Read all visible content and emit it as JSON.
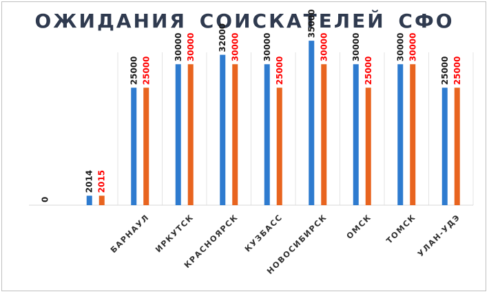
{
  "chart_data": {
    "type": "bar",
    "title": "ОЖИДАНИЯ  СОИСКАТЕЛЕЙ   СФО",
    "categories": [
      "",
      "",
      "БАРНАУЛ",
      "ИРКУТСК",
      "КРАСНОЯРСК",
      "КУЗБАСС",
      "НОВОСИБИРСК",
      "ОМСК",
      "ТОМСК",
      "УЛАН-УДЭ"
    ],
    "series": [
      {
        "color": "#2e7bcf",
        "values": [
          0,
          2014,
          25000,
          30000,
          32000,
          30000,
          35000,
          30000,
          30000,
          25000
        ]
      },
      {
        "color": "#e8641f",
        "values": [
          null,
          2015,
          25000,
          30000,
          30000,
          25000,
          30000,
          25000,
          30000,
          25000
        ]
      }
    ],
    "data_labels": [
      [
        "0",
        "2014",
        "25000",
        "30000",
        "32000",
        "30000",
        "35000",
        "30000",
        "30000",
        "25000"
      ],
      [
        "",
        "2015",
        "25000",
        "30000",
        "30000",
        "25000",
        "30000",
        "25000",
        "30000",
        "25000"
      ]
    ],
    "label_colors": [
      "#1a1a1a",
      "#ff0000"
    ],
    "ylim": [
      0,
      40000
    ],
    "xlabel": "",
    "ylabel": "",
    "grid": "vertical-category-separators",
    "legend": "none"
  }
}
